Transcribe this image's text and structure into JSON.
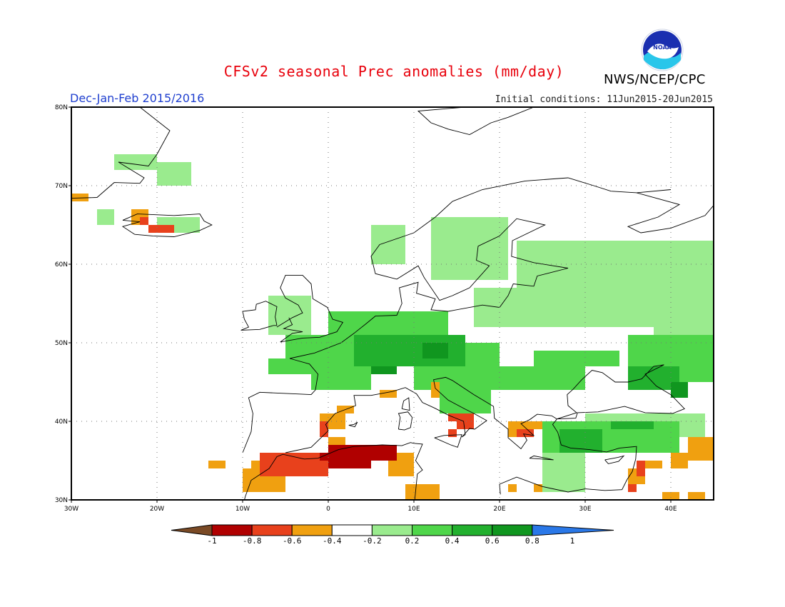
{
  "title": "CFSv2 seasonal Prec anomalies (mm/day)",
  "period": "Dec-Jan-Feb 2015/2016",
  "initial_conditions": "Initial conditions: 11Jun2015-20Jun2015",
  "agency": "NWS/NCEP/CPC",
  "logo_text": "NOAA",
  "logo_icon": "noaa-logo-icon",
  "map": {
    "lon_range": [
      -30,
      45
    ],
    "lat_range": [
      30,
      80
    ],
    "lon_ticks": [
      {
        "value": -30,
        "label": "30W"
      },
      {
        "value": -20,
        "label": "20W"
      },
      {
        "value": -10,
        "label": "10W"
      },
      {
        "value": 0,
        "label": "0"
      },
      {
        "value": 10,
        "label": "10E"
      },
      {
        "value": 20,
        "label": "20E"
      },
      {
        "value": 30,
        "label": "30E"
      },
      {
        "value": 40,
        "label": "40E"
      }
    ],
    "lat_ticks": [
      {
        "value": 30,
        "label": "30N"
      },
      {
        "value": 40,
        "label": "40N"
      },
      {
        "value": 50,
        "label": "50N"
      },
      {
        "value": 60,
        "label": "60N"
      },
      {
        "value": 70,
        "label": "70N"
      },
      {
        "value": 80,
        "label": "80N"
      }
    ],
    "grid": true
  },
  "colorbar": {
    "ticks": [
      "-1",
      "-0.8",
      "-0.6",
      "-0.4",
      "-0.2",
      "0.2",
      "0.4",
      "0.6",
      "0.8",
      "1"
    ],
    "colors": [
      "#7a4a25",
      "#b00000",
      "#e8411c",
      "#f0a010",
      "#ffffff",
      "#9aeb8e",
      "#4fd64a",
      "#22b02e",
      "#10961f",
      "#2a78e8"
    ]
  },
  "anomaly_regions": [
    {
      "name": "iberia-east-coast-dry",
      "category": "-0.4",
      "cells": [
        [
          -1,
          39,
          3,
          2
        ],
        [
          1,
          41,
          2,
          1
        ],
        [
          0,
          37,
          2,
          1
        ]
      ]
    },
    {
      "name": "iberia-east-coast-strong",
      "category": "-0.6",
      "cells": [
        [
          -1,
          38,
          1,
          2
        ]
      ]
    },
    {
      "name": "north-africa-dry",
      "category": "-0.4",
      "cells": [
        [
          -10,
          31,
          5,
          3
        ],
        [
          -9,
          33,
          3,
          2
        ],
        [
          7,
          33,
          3,
          3
        ],
        [
          9,
          30,
          4,
          2
        ],
        [
          -14,
          34,
          2,
          1
        ]
      ]
    },
    {
      "name": "north-africa-strong",
      "category": "-0.6",
      "cells": [
        [
          -8,
          33,
          8,
          3
        ],
        [
          -3,
          35,
          4,
          1
        ]
      ]
    },
    {
      "name": "algeria-very-dry",
      "category": "-0.8",
      "cells": [
        [
          0,
          36,
          8,
          1
        ],
        [
          -1,
          35,
          9,
          1
        ],
        [
          0,
          34,
          3,
          1
        ],
        [
          3,
          34,
          2,
          1
        ]
      ]
    },
    {
      "name": "iceland-dry",
      "category": "-0.6",
      "cells": [
        [
          -21,
          64,
          3,
          1
        ],
        [
          -22,
          65,
          1,
          1
        ]
      ]
    },
    {
      "name": "iceland-mild-dry",
      "category": "-0.4",
      "cells": [
        [
          -23,
          65,
          2,
          2
        ],
        [
          -30,
          68,
          2,
          1
        ]
      ]
    },
    {
      "name": "italy-south-dry",
      "category": "-0.6",
      "cells": [
        [
          14,
          40,
          3,
          1
        ],
        [
          15,
          39,
          2,
          1
        ],
        [
          14,
          38,
          1,
          1
        ]
      ]
    },
    {
      "name": "greece-dry",
      "category": "-0.4",
      "cells": [
        [
          21,
          38,
          3,
          2
        ],
        [
          23,
          39,
          2,
          1
        ],
        [
          6,
          43,
          2,
          1
        ],
        [
          12,
          43,
          1,
          2
        ]
      ]
    },
    {
      "name": "greece-strong",
      "category": "-0.6",
      "cells": [
        [
          22,
          38,
          2,
          1
        ]
      ]
    },
    {
      "name": "levant-dry",
      "category": "-0.4",
      "cells": [
        [
          35,
          32,
          2,
          2
        ],
        [
          40,
          34,
          2,
          2
        ],
        [
          42,
          35,
          3,
          3
        ],
        [
          37,
          34,
          2,
          1
        ],
        [
          39,
          30,
          2,
          1
        ],
        [
          42,
          30,
          2,
          1
        ],
        [
          21,
          31,
          1,
          1
        ],
        [
          24,
          31,
          1,
          1
        ]
      ]
    },
    {
      "name": "levant-strong",
      "category": "-0.6",
      "cells": [
        [
          36,
          33,
          1,
          2
        ],
        [
          35,
          31,
          1,
          1
        ]
      ]
    },
    {
      "name": "western-europe-wet",
      "category": "0.4",
      "cells": [
        [
          -5,
          48,
          10,
          3
        ],
        [
          0,
          50,
          14,
          4
        ],
        [
          5,
          47,
          15,
          3
        ],
        [
          -7,
          46,
          12,
          2
        ],
        [
          -2,
          44,
          7,
          2
        ],
        [
          10,
          44,
          10,
          3
        ],
        [
          13,
          41,
          6,
          3
        ],
        [
          20,
          44,
          10,
          3
        ],
        [
          24,
          47,
          10,
          2
        ],
        [
          35,
          45,
          10,
          6
        ]
      ]
    },
    {
      "name": "central-europe-strong-wet",
      "category": "0.6",
      "cells": [
        [
          3,
          47,
          13,
          4
        ],
        [
          6,
          49,
          8,
          2
        ],
        [
          35,
          44,
          6,
          3
        ]
      ]
    },
    {
      "name": "alps-very-wet",
      "category": "0.8",
      "cells": [
        [
          11,
          48,
          3,
          2
        ],
        [
          5,
          46,
          3,
          1
        ],
        [
          40,
          43,
          2,
          2
        ]
      ]
    },
    {
      "name": "scandinavia-russia-wet",
      "category": "0.2",
      "cells": [
        [
          5,
          60,
          4,
          5
        ],
        [
          12,
          58,
          9,
          8
        ],
        [
          22,
          56,
          23,
          7
        ],
        [
          17,
          52,
          28,
          5
        ],
        [
          38,
          50,
          7,
          8
        ],
        [
          -7,
          51,
          5,
          5
        ],
        [
          -20,
          70,
          4,
          3
        ],
        [
          -25,
          72,
          5,
          2
        ],
        [
          -20,
          64,
          5,
          2
        ],
        [
          -27,
          65,
          2,
          2
        ],
        [
          25,
          31,
          5,
          9
        ],
        [
          30,
          38,
          14,
          3
        ]
      ]
    },
    {
      "name": "turkey-wet",
      "category": "0.4",
      "cells": [
        [
          25,
          36,
          16,
          4
        ],
        [
          31,
          37,
          6,
          2
        ]
      ]
    },
    {
      "name": "turkey-strong-wet",
      "category": "0.6",
      "cells": [
        [
          27,
          36,
          5,
          3
        ],
        [
          33,
          39,
          5,
          1
        ]
      ]
    }
  ]
}
